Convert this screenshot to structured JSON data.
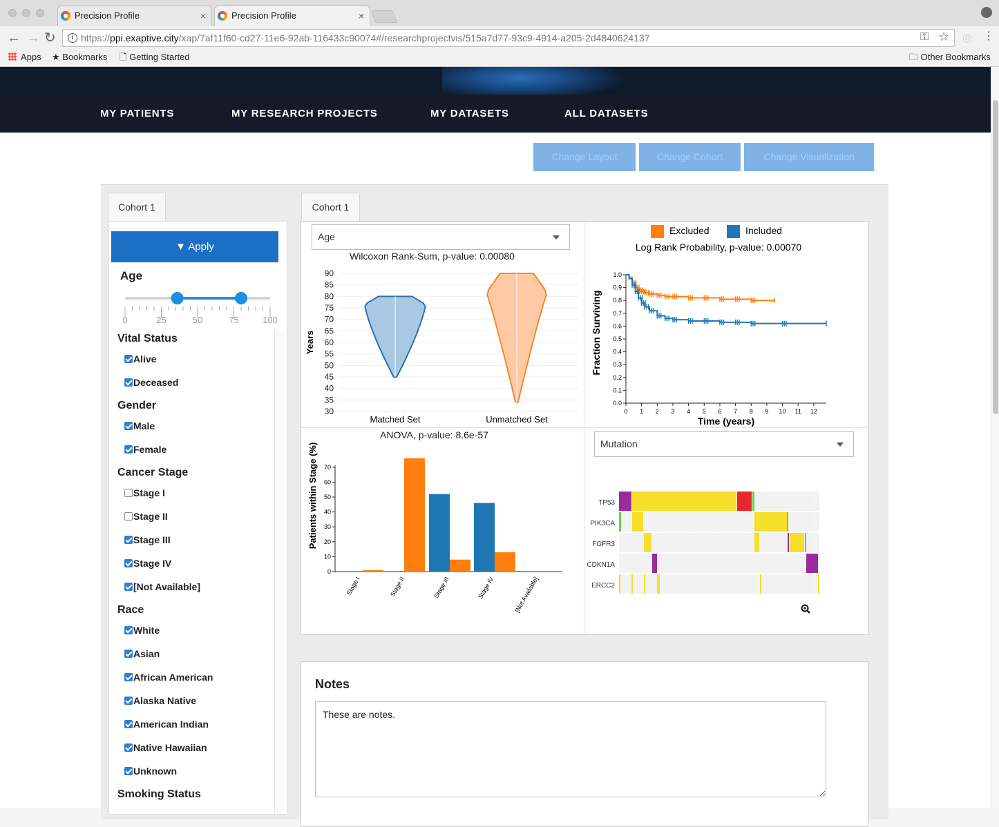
{
  "browser": {
    "tabs": [
      {
        "title": "Precision Profile",
        "close": "×"
      },
      {
        "title": "Precision Profile",
        "close": "×"
      }
    ],
    "url_prefix": "https://",
    "url_host": "ppi.exaptive.city",
    "url_path": "/xap/7af11f60-cd27-11e6-92ab-116433c90074#/researchprojectvis/515a7d77-93c9-4914-a205-2d4840624137",
    "bookmarks": {
      "apps": "Apps",
      "bookmarks": "Bookmarks",
      "getting_started": "Getting Started",
      "other": "Other Bookmarks"
    }
  },
  "nav": {
    "items": [
      "MY PATIENTS",
      "MY RESEARCH PROJECTS",
      "MY DATASETS",
      "ALL DATASETS"
    ]
  },
  "actions": {
    "change_layout": "Change Layout",
    "change_cohort": "Change Cohort",
    "change_visualization": "Change Visualization"
  },
  "filter": {
    "tab": "Cohort 1",
    "apply": "Apply",
    "age": {
      "title": "Age",
      "min": 0,
      "max": 100,
      "low": 36,
      "high": 80,
      "ticks": [
        "0",
        "25",
        "50",
        "75",
        "100"
      ]
    },
    "vital_status": {
      "title": "Vital Status",
      "options": [
        {
          "label": "Alive",
          "checked": true
        },
        {
          "label": "Deceased",
          "checked": true
        }
      ]
    },
    "gender": {
      "title": "Gender",
      "options": [
        {
          "label": "Male",
          "checked": true
        },
        {
          "label": "Female",
          "checked": true
        }
      ]
    },
    "cancer_stage": {
      "title": "Cancer Stage",
      "options": [
        {
          "label": "Stage I",
          "checked": false
        },
        {
          "label": "Stage II",
          "checked": false
        },
        {
          "label": "Stage III",
          "checked": true
        },
        {
          "label": "Stage IV",
          "checked": true
        },
        {
          "label": "[Not Available]",
          "checked": true
        }
      ]
    },
    "race": {
      "title": "Race",
      "options": [
        {
          "label": "White",
          "checked": true
        },
        {
          "label": "Asian",
          "checked": true
        },
        {
          "label": "African American",
          "checked": true
        },
        {
          "label": "Alaska Native",
          "checked": true
        },
        {
          "label": "American Indian",
          "checked": true
        },
        {
          "label": "Native Hawaiian",
          "checked": true
        },
        {
          "label": "Unknown",
          "checked": true
        }
      ]
    },
    "smoking_status": {
      "title": "Smoking Status"
    }
  },
  "viz": {
    "tab": "Cohort 1",
    "age_select": "Age",
    "mutation_select": "Mutation"
  },
  "colors": {
    "excluded": "#ff7f0e",
    "included": "#1f77b4",
    "violin_matched_fill": "#a9c8e4",
    "violin_unmatched_fill": "#ffc9a3"
  },
  "chart_data": [
    {
      "type": "violin",
      "title": "Wilcoxon Rank-Sum, p-value: 0.00080",
      "ylabel": "Years",
      "ylim": [
        30,
        90
      ],
      "yticks": [
        30,
        35,
        40,
        45,
        50,
        55,
        60,
        65,
        70,
        75,
        80,
        85,
        90
      ],
      "categories": [
        "Matched Set",
        "Unmatched Set"
      ],
      "series": [
        {
          "category": "Matched Set",
          "min": 45,
          "max": 80
        },
        {
          "category": "Unmatched Set",
          "min": 34,
          "max": 90
        }
      ]
    },
    {
      "type": "line",
      "legend": [
        {
          "name": "Excluded",
          "color": "#ff7f0e"
        },
        {
          "name": "Included",
          "color": "#1f77b4"
        }
      ],
      "legend_position": "top",
      "title": "Log Rank Probability, p-value: 0.00070",
      "xlabel": "Time (years)",
      "ylabel": "Fraction Surviving",
      "xlim": [
        0,
        12.8
      ],
      "ylim": [
        0,
        1.0
      ],
      "xticks": [
        0,
        1,
        2,
        3,
        4,
        5,
        6,
        7,
        8,
        9,
        10,
        11,
        12
      ],
      "yticks": [
        "0.0",
        "0.1",
        "0.2",
        "0.3",
        "0.4",
        "0.5",
        "0.6",
        "0.7",
        "0.8",
        "0.9",
        "1.0"
      ],
      "series": [
        {
          "name": "Excluded",
          "x": [
            0,
            0.2,
            0.4,
            0.6,
            0.8,
            1.0,
            1.2,
            1.5,
            2.0,
            2.5,
            3.0,
            4.0,
            5.0,
            6.0,
            7.0,
            8.0,
            9.5
          ],
          "y": [
            1.0,
            0.98,
            0.94,
            0.9,
            0.88,
            0.87,
            0.86,
            0.85,
            0.84,
            0.83,
            0.83,
            0.82,
            0.82,
            0.81,
            0.81,
            0.8,
            0.8
          ]
        },
        {
          "name": "Included",
          "x": [
            0,
            0.2,
            0.4,
            0.6,
            0.8,
            1.0,
            1.2,
            1.5,
            2.0,
            2.5,
            3.0,
            4.0,
            5.0,
            6.0,
            7.0,
            8.0,
            10.0,
            12.8
          ],
          "y": [
            1.0,
            0.97,
            0.92,
            0.87,
            0.82,
            0.78,
            0.75,
            0.72,
            0.68,
            0.66,
            0.65,
            0.64,
            0.64,
            0.63,
            0.63,
            0.62,
            0.62,
            0.62
          ]
        }
      ]
    },
    {
      "type": "bar",
      "title": "ANOVA, p-value: 8.6e-57",
      "ylabel": "Patients within Stage (%)",
      "ylim": [
        0,
        75
      ],
      "yticks": [
        0,
        10,
        20,
        30,
        40,
        50,
        60,
        70
      ],
      "categories": [
        "Stage I",
        "Stage II",
        "Stage III",
        "Stage IV",
        "[Not Available]"
      ],
      "series": [
        {
          "color": "#1f77b4",
          "values": [
            0,
            0,
            52,
            46,
            0
          ]
        },
        {
          "color": "#ff7f0e",
          "values": [
            1,
            76,
            8,
            13,
            0
          ]
        }
      ]
    },
    {
      "type": "heatmap",
      "rows": [
        "TP53",
        "PIK3CA",
        "FGFR3",
        "CDKN1A",
        "ERCC2"
      ]
    }
  ],
  "notes": {
    "title": "Notes",
    "text": "These are notes."
  }
}
